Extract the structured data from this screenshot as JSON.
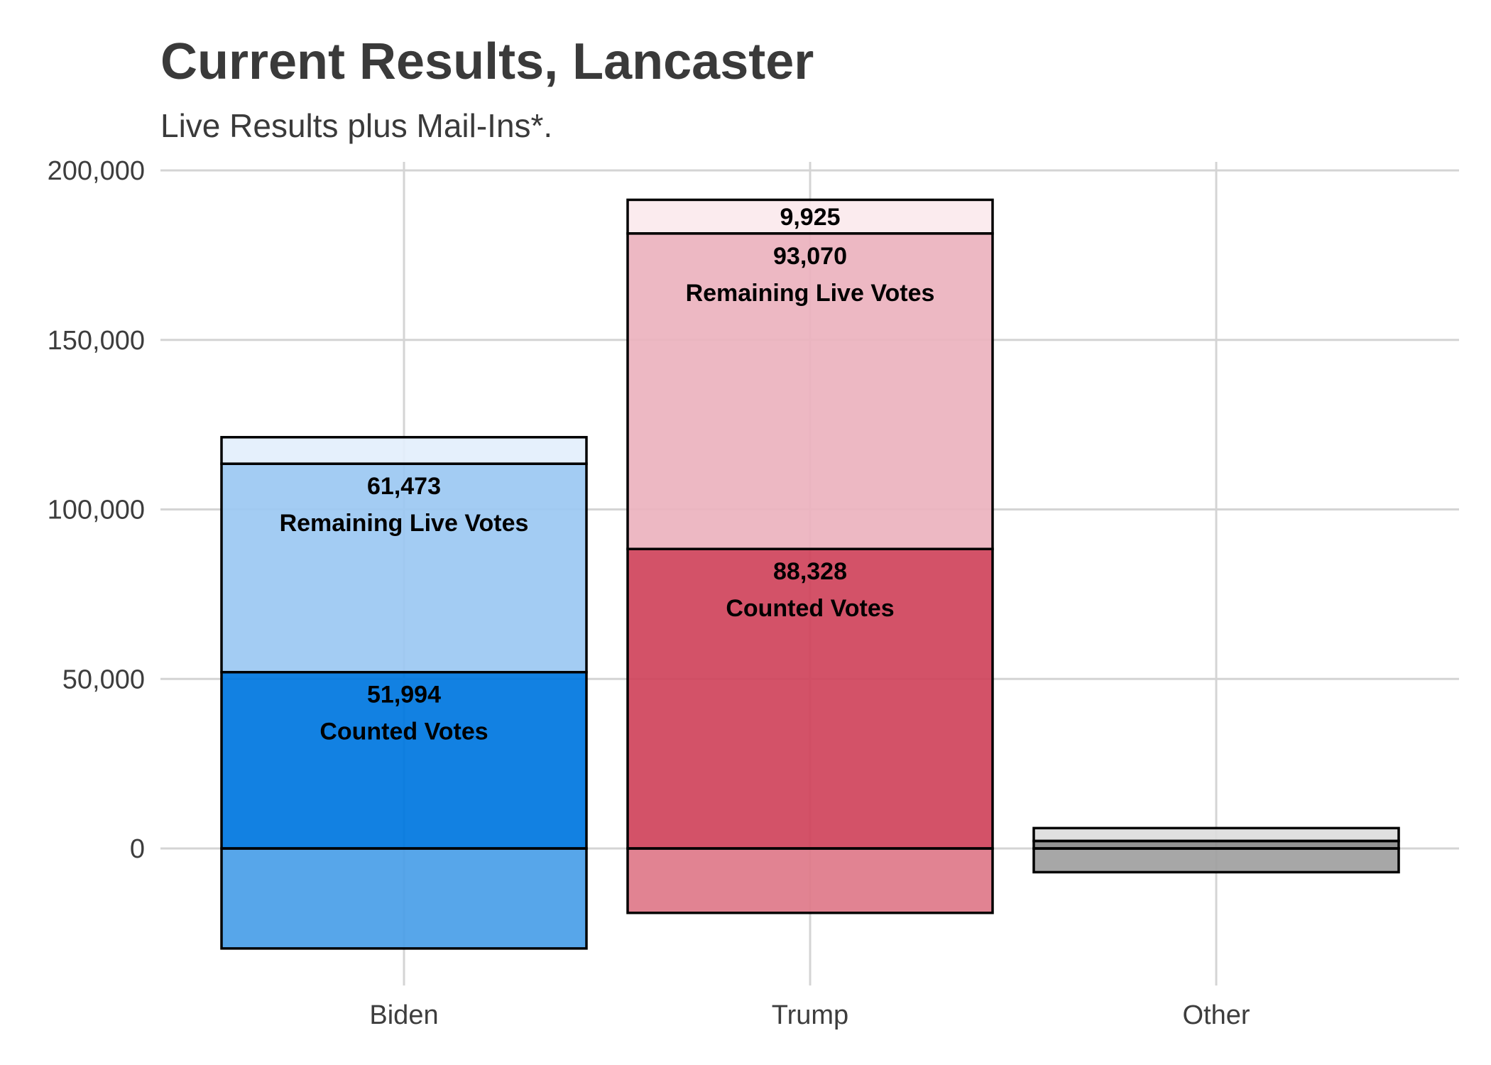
{
  "chart_data": {
    "type": "bar",
    "title": "Current Results, Lancaster",
    "subtitle": "Live Results plus Mail-Ins*.",
    "categories": [
      "Biden",
      "Trump",
      "Other"
    ],
    "ylim": [
      -40000,
      200000
    ],
    "yticks": [
      0,
      50000,
      100000,
      150000,
      200000
    ],
    "ytick_labels": [
      "0",
      "50,000",
      "100,000",
      "150,000",
      "200,000"
    ],
    "grid": true,
    "legend": "none",
    "bars": [
      {
        "category": "Biden",
        "segments": [
          {
            "from": -29500,
            "to": 0,
            "color": "#4a9fe8"
          },
          {
            "from": 0,
            "to": 51994,
            "color": "#0077e0",
            "value_label": "51,994",
            "text_label": "Counted Votes"
          },
          {
            "from": 51994,
            "to": 113467,
            "color": "#9cc8f2",
            "value_label": "61,473",
            "text_label": "Remaining Live Votes"
          },
          {
            "from": 113467,
            "to": 121300,
            "color": "#e3effc"
          }
        ]
      },
      {
        "category": "Trump",
        "segments": [
          {
            "from": -19000,
            "to": 0,
            "color": "#df7a8a"
          },
          {
            "from": 0,
            "to": 88328,
            "color": "#d0455d",
            "value_label": "88,328",
            "text_label": "Counted Votes"
          },
          {
            "from": 88328,
            "to": 181398,
            "color": "#ecb3be",
            "value_label": "93,070",
            "text_label": "Remaining Live Votes"
          },
          {
            "from": 181398,
            "to": 191323,
            "color": "#fbe9ed",
            "value_label": "9,925"
          }
        ]
      },
      {
        "category": "Other",
        "segments": [
          {
            "from": -7000,
            "to": 0,
            "color": "#a0a0a0"
          },
          {
            "from": 0,
            "to": 2200,
            "color": "#8c8c8c"
          },
          {
            "from": 2200,
            "to": 6000,
            "color": "#dedede"
          }
        ]
      }
    ]
  }
}
